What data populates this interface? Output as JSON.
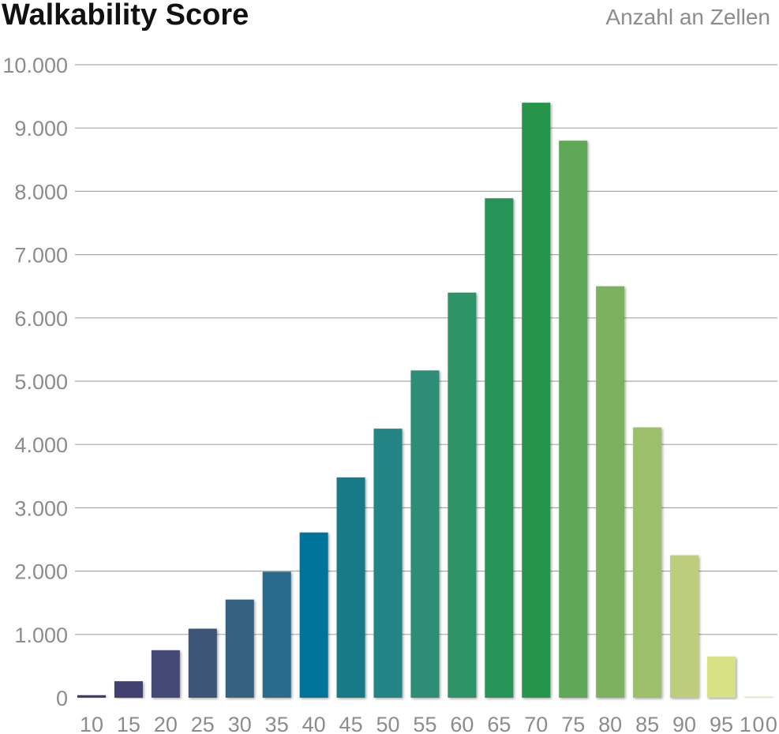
{
  "chart_data": {
    "type": "bar",
    "title": "Walkability Score",
    "unit_label": "Anzahl an Zellen",
    "xlabel": "",
    "ylabel": "",
    "categories": [
      "10",
      "15",
      "20",
      "25",
      "30",
      "35",
      "40",
      "45",
      "50",
      "55",
      "60",
      "65",
      "70",
      "75",
      "80",
      "85",
      "90",
      "95",
      "100"
    ],
    "values": [
      40,
      260,
      750,
      1090,
      1550,
      1990,
      2610,
      3480,
      4250,
      5170,
      6400,
      7890,
      9400,
      8800,
      6500,
      4270,
      2250,
      650,
      20
    ],
    "ylim": [
      0,
      10000
    ],
    "yticks": [
      {
        "value": 0,
        "label": "0"
      },
      {
        "value": 1000,
        "label": "1.000"
      },
      {
        "value": 2000,
        "label": "2.000"
      },
      {
        "value": 3000,
        "label": "3.000"
      },
      {
        "value": 4000,
        "label": "4.000"
      },
      {
        "value": 5000,
        "label": "5.000"
      },
      {
        "value": 6000,
        "label": "6.000"
      },
      {
        "value": 7000,
        "label": "7.000"
      },
      {
        "value": 8000,
        "label": "8.000"
      },
      {
        "value": 9000,
        "label": "9.000"
      },
      {
        "value": 10000,
        "label": "10.000"
      }
    ],
    "grid": true,
    "legend": "none",
    "bar_colors": [
      "#3f3d6e",
      "#433f70",
      "#444a74",
      "#3d5577",
      "#35627e",
      "#2a6a8a",
      "#04739a",
      "#127a87",
      "#218583",
      "#2f8d77",
      "#2d9468",
      "#289456",
      "#26954b",
      "#5ea859",
      "#7cb15e",
      "#9cbf6c",
      "#bccd7c",
      "#d8e183",
      "#f0e9b4"
    ]
  }
}
